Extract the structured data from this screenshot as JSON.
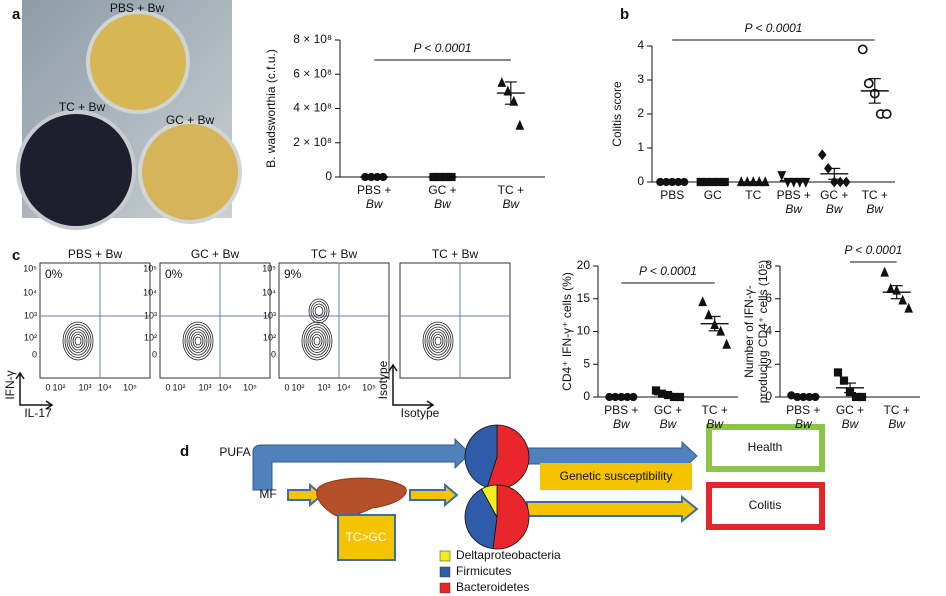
{
  "panel_labels": [
    "a",
    "b",
    "c",
    "d"
  ],
  "photo": {
    "labels": [
      "PBS + Bw",
      "TC + Bw",
      "GC + Bw"
    ]
  },
  "chart_data": [
    {
      "type": "dot",
      "y_label": [
        "B. wadsworthia (c.f.u.)"
      ],
      "categories": [
        [
          "PBS +",
          "Bw"
        ],
        [
          "GC +",
          "Bw"
        ],
        [
          "TC +",
          "Bw"
        ]
      ],
      "markers": [
        "circle",
        "square",
        "triangle"
      ],
      "points": [
        [
          0,
          0,
          0,
          0
        ],
        [
          0,
          0,
          0,
          0
        ],
        [
          550000000,
          500000000,
          440000000,
          300000000
        ]
      ],
      "means": [
        0,
        0,
        490000000
      ],
      "sems": [
        0,
        0,
        65000000
      ],
      "ylim": [
        0,
        800000000
      ],
      "yticks": [
        0,
        {
          "value": 200000000,
          "label": "2 × 10⁸"
        },
        {
          "value": 400000000,
          "label": "4 × 10⁸"
        },
        {
          "value": 600000000,
          "label": "6 × 10⁸"
        },
        {
          "value": 800000000,
          "label": "8 × 10⁸"
        }
      ],
      "annotation": "P < 0.0001",
      "color": "#111111"
    },
    {
      "type": "dot",
      "y_label": [
        "Colitis score"
      ],
      "categories": [
        [
          "PBS"
        ],
        [
          "GC"
        ],
        [
          "TC"
        ],
        [
          "PBS +",
          "Bw"
        ],
        [
          "GC +",
          "Bw"
        ],
        [
          "TC +",
          "Bw"
        ]
      ],
      "markers": [
        "circle",
        "square",
        "triangle",
        "triangle-down",
        "diamond",
        "circle-open"
      ],
      "points": [
        [
          0,
          0,
          0,
          0,
          0
        ],
        [
          0,
          0,
          0,
          0,
          0
        ],
        [
          0,
          0,
          0,
          0,
          0
        ],
        [
          0.2,
          0,
          0,
          0,
          0
        ],
        [
          0.8,
          0.4,
          0,
          0,
          0
        ],
        [
          3.9,
          2.9,
          2.6,
          2,
          2
        ]
      ],
      "means": [
        0,
        0,
        0,
        0.04,
        0.24,
        2.68
      ],
      "sems": [
        0,
        0,
        0,
        0.04,
        0.16,
        0.36
      ],
      "ylim": [
        0,
        4
      ],
      "yticks": [
        0,
        1,
        2,
        3,
        4
      ],
      "annotation": "P < 0.0001",
      "color": "#111111"
    },
    {
      "type": "dot",
      "y_label": [
        "CD4⁺ IFN-γ⁺ cells (%)"
      ],
      "categories": [
        [
          "PBS +",
          "Bw"
        ],
        [
          "GC +",
          "Bw"
        ],
        [
          "TC +",
          "Bw"
        ]
      ],
      "markers": [
        "circle",
        "square",
        "triangle"
      ],
      "points": [
        [
          0,
          0,
          0,
          0,
          0
        ],
        [
          1,
          0.5,
          0.3,
          0,
          0
        ],
        [
          14.5,
          12.5,
          11,
          10,
          8
        ]
      ],
      "means": [
        0,
        0.36,
        11.2
      ],
      "sems": [
        0,
        0.19,
        1.1
      ],
      "ylim": [
        0,
        20
      ],
      "yticks": [
        0,
        5,
        10,
        15,
        20
      ],
      "annotation": "P < 0.0001",
      "color": "#111111"
    },
    {
      "type": "dot",
      "y_label": [
        "Number of IFN-γ-",
        "producing CD4⁺ cells (10⁵)"
      ],
      "categories": [
        [
          "PBS +",
          "Bw"
        ],
        [
          "GC +",
          "Bw"
        ],
        [
          "TC +",
          "Bw"
        ]
      ],
      "markers": [
        "circle",
        "square",
        "triangle"
      ],
      "points": [
        [
          0.1,
          0,
          0,
          0,
          0
        ],
        [
          1.5,
          1,
          0.3,
          0,
          0
        ],
        [
          7.6,
          6.6,
          6.5,
          5.9,
          5.4
        ]
      ],
      "means": [
        0.02,
        0.56,
        6.4
      ],
      "sems": [
        0.02,
        0.29,
        0.4
      ],
      "ylim": [
        0,
        8
      ],
      "yticks": [
        0,
        2,
        4,
        6,
        8
      ],
      "annotation": "P < 0.0001",
      "color": "#111111"
    }
  ],
  "flow": {
    "titles": [
      "PBS + Bw",
      "GC + Bw",
      "TC + Bw",
      "TC + Bw"
    ],
    "percentages": [
      "0%",
      "0%",
      "9%"
    ],
    "ticks": [
      "0",
      "10²",
      "10³",
      "10⁴",
      "10⁵"
    ],
    "axis_titles": [
      {
        "y": "IFN-γ",
        "x": "IL-17"
      },
      {
        "y": "Isotype",
        "x": "Isotype"
      }
    ]
  },
  "diagram": {
    "inputs": [
      "PUFA",
      "MF"
    ],
    "organ_label": "TC>GC",
    "modifier": "Genetic susceptibility",
    "outcomes": [
      "Health",
      "Colitis"
    ],
    "legend": {
      "categories": [
        "Deltaproteobacteria",
        "Firmicutes",
        "Bacteroidetes"
      ],
      "colors": [
        "#f2ee22",
        "#2f5ca8",
        "#e8262b"
      ]
    },
    "pies": [
      {
        "values": [
          0,
          45,
          55
        ]
      },
      {
        "values": [
          8,
          40,
          52
        ]
      }
    ]
  }
}
